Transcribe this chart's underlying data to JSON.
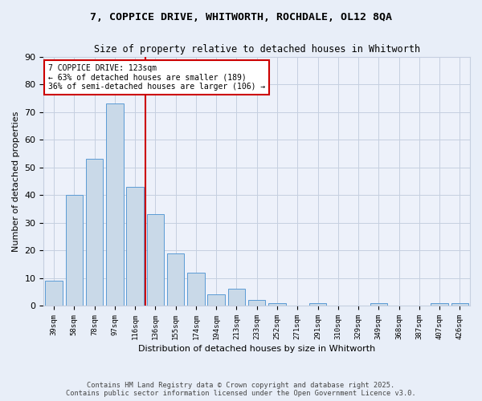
{
  "title_line1": "7, COPPICE DRIVE, WHITWORTH, ROCHDALE, OL12 8QA",
  "title_line2": "Size of property relative to detached houses in Whitworth",
  "xlabel": "Distribution of detached houses by size in Whitworth",
  "ylabel": "Number of detached properties",
  "categories": [
    "39sqm",
    "58sqm",
    "78sqm",
    "97sqm",
    "116sqm",
    "136sqm",
    "155sqm",
    "174sqm",
    "194sqm",
    "213sqm",
    "233sqm",
    "252sqm",
    "271sqm",
    "291sqm",
    "310sqm",
    "329sqm",
    "349sqm",
    "368sqm",
    "387sqm",
    "407sqm",
    "426sqm"
  ],
  "values": [
    9,
    40,
    53,
    73,
    43,
    33,
    19,
    12,
    4,
    6,
    2,
    1,
    0,
    1,
    0,
    0,
    1,
    0,
    0,
    1,
    1
  ],
  "bar_color": "#c9d9e8",
  "bar_edge_color": "#5b9bd5",
  "ylim": [
    0,
    90
  ],
  "yticks": [
    0,
    10,
    20,
    30,
    40,
    50,
    60,
    70,
    80,
    90
  ],
  "vline_x": 4.5,
  "vline_color": "#cc0000",
  "annotation_text": "7 COPPICE DRIVE: 123sqm\n← 63% of detached houses are smaller (189)\n36% of semi-detached houses are larger (106) →",
  "annotation_box_color": "#cc0000",
  "footer_line1": "Contains HM Land Registry data © Crown copyright and database right 2025.",
  "footer_line2": "Contains public sector information licensed under the Open Government Licence v3.0.",
  "bg_color": "#e8eef8",
  "plot_bg_color": "#edf1fa",
  "grid_color": "#c5cfe0"
}
